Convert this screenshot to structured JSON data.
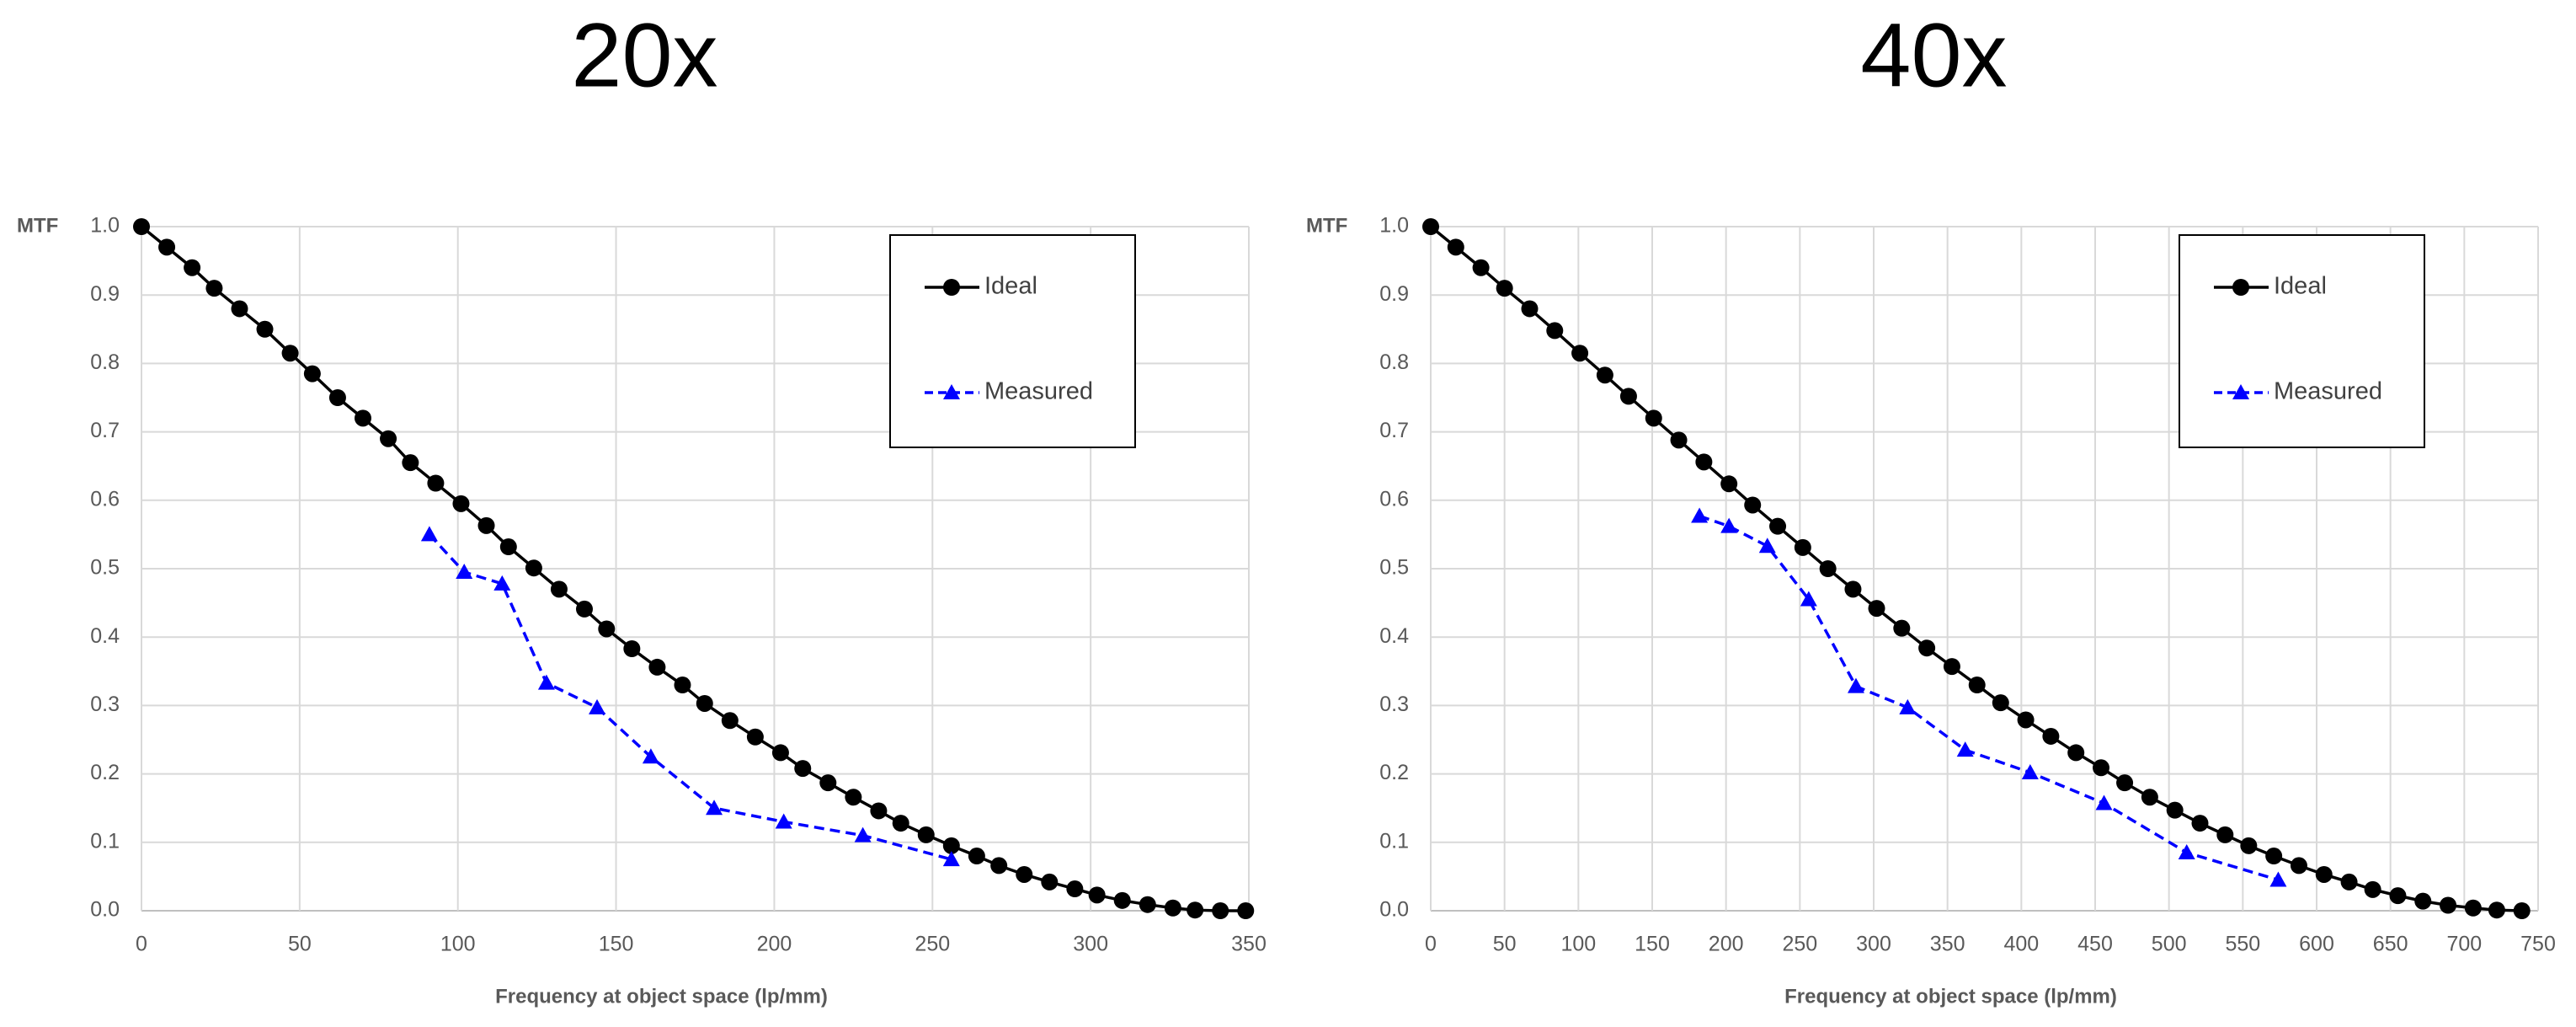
{
  "chart_data": [
    {
      "type": "line",
      "title": "20x",
      "y_label": "MTF",
      "x_label": "Frequency at object space (lp/mm)",
      "xlim": [
        0,
        350
      ],
      "xticks": [
        0,
        50,
        100,
        150,
        200,
        250,
        300,
        350
      ],
      "ylim": [
        0,
        1
      ],
      "yticks": [
        {
          "value": 0,
          "label": "0.0"
        },
        0.1,
        0.2,
        0.3,
        0.4,
        0.5,
        0.6,
        0.7,
        0.8,
        0.9,
        {
          "value": 1,
          "label": "1.0"
        }
      ],
      "grid": true,
      "legend": "top-right",
      "series": [
        {
          "name": "Ideal",
          "color": "#000000",
          "marker": "circle",
          "dashed": false,
          "x": [
            0,
            8,
            16,
            23,
            31,
            39,
            47,
            54,
            62,
            70,
            78,
            85,
            93,
            101,
            109,
            116,
            124,
            132,
            140,
            147,
            155,
            163,
            171,
            178,
            186,
            194,
            202,
            209,
            217,
            225,
            233,
            240,
            248,
            256,
            264,
            271,
            279,
            287,
            295,
            302,
            310,
            318,
            326,
            333,
            341,
            349
          ],
          "values": [
            1.0,
            0.97,
            0.94,
            0.91,
            0.88,
            0.85,
            0.815,
            0.785,
            0.75,
            0.72,
            0.69,
            0.655,
            0.625,
            0.595,
            0.563,
            0.532,
            0.501,
            0.47,
            0.441,
            0.412,
            0.383,
            0.356,
            0.33,
            0.303,
            0.278,
            0.254,
            0.231,
            0.208,
            0.187,
            0.166,
            0.146,
            0.128,
            0.111,
            0.095,
            0.08,
            0.066,
            0.053,
            0.042,
            0.032,
            0.023,
            0.015,
            0.009,
            0.004,
            0.001,
            0,
            0
          ]
        },
        {
          "name": "Measured",
          "color": "#0000ff",
          "marker": "triangle",
          "dashed": true,
          "x": [
            91,
            102,
            114,
            128,
            144,
            161,
            181,
            203,
            228,
            256
          ],
          "values": [
            0.55,
            0.495,
            0.478,
            0.333,
            0.297,
            0.225,
            0.15,
            0.13,
            0.11,
            0.075
          ]
        }
      ]
    },
    {
      "type": "line",
      "title": "40x",
      "y_label": "MTF",
      "x_label": "Frequency at object space (lp/mm)",
      "xlim": [
        0,
        750
      ],
      "xticks": [
        0,
        50,
        100,
        150,
        200,
        250,
        300,
        350,
        400,
        450,
        500,
        550,
        600,
        650,
        700,
        750
      ],
      "ylim": [
        0,
        1
      ],
      "yticks": [
        {
          "value": 0,
          "label": "0.0"
        },
        0.1,
        0.2,
        0.3,
        0.4,
        0.5,
        0.6,
        0.7,
        0.8,
        0.9,
        {
          "value": 1,
          "label": "1.0"
        }
      ],
      "grid": true,
      "legend": "top-right",
      "series": [
        {
          "name": "Ideal",
          "color": "#000000",
          "marker": "circle",
          "dashed": false,
          "x": [
            0,
            17,
            34,
            50,
            67,
            84,
            101,
            118,
            134,
            151,
            168,
            185,
            202,
            218,
            235,
            252,
            269,
            286,
            302,
            319,
            336,
            353,
            370,
            386,
            403,
            420,
            437,
            454,
            470,
            487,
            504,
            521,
            538,
            554,
            571,
            588,
            605,
            622,
            638,
            655,
            672,
            689,
            706,
            722,
            739
          ],
          "values": [
            1.0,
            0.97,
            0.94,
            0.91,
            0.88,
            0.848,
            0.815,
            0.783,
            0.752,
            0.72,
            0.688,
            0.656,
            0.624,
            0.593,
            0.562,
            0.531,
            0.5,
            0.47,
            0.442,
            0.413,
            0.384,
            0.357,
            0.33,
            0.304,
            0.279,
            0.255,
            0.231,
            0.209,
            0.187,
            0.166,
            0.147,
            0.128,
            0.111,
            0.095,
            0.08,
            0.066,
            0.053,
            0.042,
            0.031,
            0.022,
            0.014,
            0.008,
            0.004,
            0.001,
            0
          ]
        },
        {
          "name": "Measured",
          "color": "#0000ff",
          "marker": "triangle",
          "dashed": true,
          "x": [
            182,
            202,
            228,
            256,
            288,
            323,
            362,
            406,
            456,
            512,
            574
          ],
          "values": [
            0.577,
            0.562,
            0.533,
            0.455,
            0.328,
            0.297,
            0.235,
            0.202,
            0.157,
            0.085,
            0.045
          ]
        }
      ]
    }
  ]
}
